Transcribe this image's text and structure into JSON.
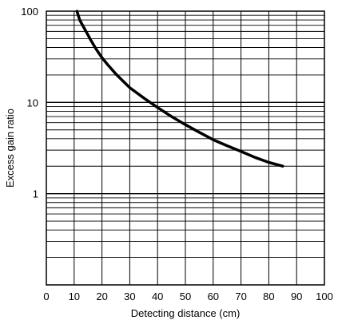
{
  "chart_data": {
    "type": "line",
    "title": "",
    "xlabel": "Detecting distance (cm)",
    "ylabel": "Excess gain ratio",
    "xlim": [
      0,
      100
    ],
    "ylim": [
      0.1,
      100
    ],
    "y_scale": "log",
    "grid": true,
    "x_ticks": [
      0,
      10,
      20,
      30,
      40,
      50,
      60,
      70,
      80,
      90,
      100
    ],
    "x_tick_labels": [
      "0",
      "10",
      "20",
      "30",
      "40",
      "50",
      "60",
      "70",
      "80",
      "90",
      "100"
    ],
    "y_ticks": [
      1,
      10,
      100
    ],
    "y_tick_labels": [
      "1",
      "10",
      "100"
    ],
    "series": [
      {
        "color": "#000000",
        "x": [
          11,
          12,
          14,
          16,
          18,
          20,
          22,
          25,
          30,
          35,
          40,
          45,
          50,
          55,
          60,
          65,
          70,
          75,
          80,
          85
        ],
        "y": [
          100,
          80,
          62,
          48,
          38,
          31,
          26,
          20.5,
          14.5,
          11.2,
          8.8,
          7.0,
          5.7,
          4.7,
          3.9,
          3.35,
          2.9,
          2.5,
          2.2,
          2.0
        ]
      }
    ]
  }
}
